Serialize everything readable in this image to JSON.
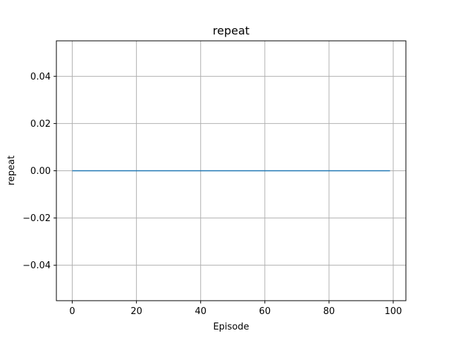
{
  "chart_data": {
    "type": "line",
    "title": "repeat",
    "xlabel": "Episode",
    "ylabel": "repeat",
    "xlim": [
      -4.95,
      103.95
    ],
    "ylim": [
      -0.055,
      0.055
    ],
    "xticks": [
      0,
      20,
      40,
      60,
      80,
      100
    ],
    "xtick_labels": [
      "0",
      "20",
      "40",
      "60",
      "80",
      "100"
    ],
    "yticks": [
      -0.04,
      -0.02,
      0.0,
      0.02,
      0.04
    ],
    "ytick_labels": [
      "−0.04",
      "−0.02",
      "0.00",
      "0.02",
      "0.04"
    ],
    "grid": true,
    "series": [
      {
        "color": "#1f77b4",
        "x": [
          0,
          99
        ],
        "y": [
          0,
          0
        ]
      }
    ]
  }
}
